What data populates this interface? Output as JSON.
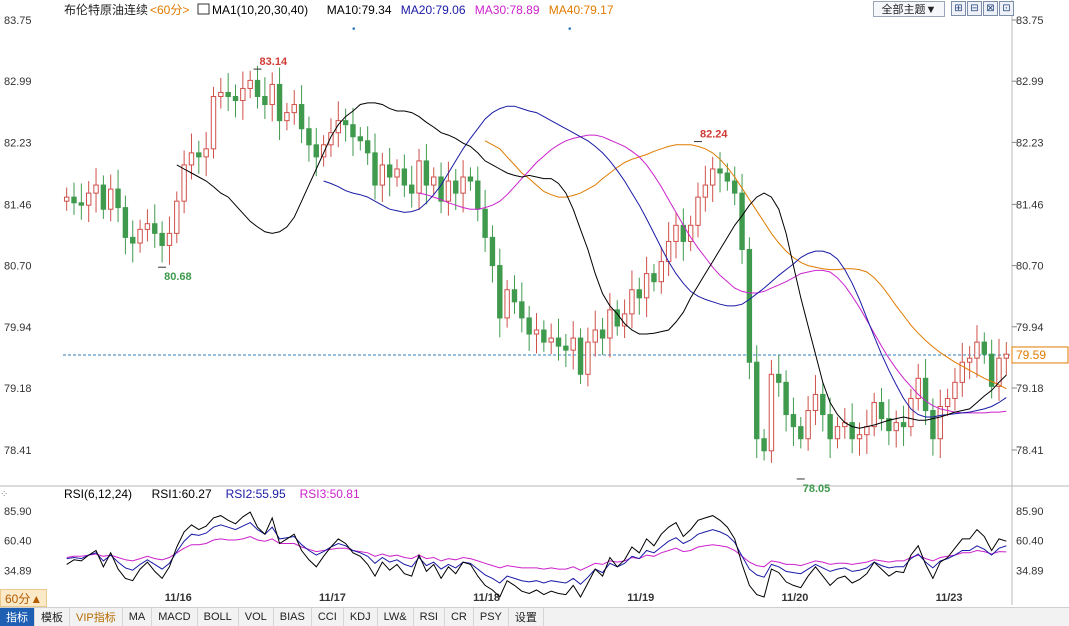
{
  "header": {
    "title": "布伦特原油连续",
    "period": "<60分>",
    "ma_labels": [
      {
        "text": "MA1(10,20,30,40)",
        "color": "#000000"
      },
      {
        "text": "MA10:79.34",
        "color": "#000000"
      },
      {
        "text": "MA20:79.06",
        "color": "#1a1aa6"
      },
      {
        "text": "MA30:78.89",
        "color": "#cc22cc"
      },
      {
        "text": "MA40:79.17",
        "color": "#e07b00"
      }
    ],
    "theme_button": "全部主题▼",
    "window_buttons": [
      "⊞",
      "⊟",
      "⊠",
      "⊡"
    ]
  },
  "rsi_header": {
    "labels": [
      {
        "text": "RSI(6,12,24)",
        "color": "#000000"
      },
      {
        "text": "RSI1:60.27",
        "color": "#000000"
      },
      {
        "text": "RSI2:55.95",
        "color": "#1a1aa6"
      },
      {
        "text": "RSI3:50.81",
        "color": "#cc22cc"
      }
    ]
  },
  "colors": {
    "up": "#d0504a",
    "down": "#3f9a4d",
    "ma10": "#000000",
    "ma20": "#1a1aa6",
    "ma30": "#cc22cc",
    "ma40": "#e07b00",
    "current_line": "#2d7fc0"
  },
  "chart_data": {
    "type": "candlestick",
    "yticks": [
      83.75,
      82.99,
      82.23,
      81.46,
      80.7,
      79.94,
      79.18,
      78.41
    ],
    "ylim": [
      78.0,
      83.75
    ],
    "xticks": [
      {
        "label": "11/16",
        "index": 15
      },
      {
        "label": "11/17",
        "index": 36
      },
      {
        "label": "11/18",
        "index": 57
      },
      {
        "label": "11/19",
        "index": 78
      },
      {
        "label": "11/20",
        "index": 99
      },
      {
        "label": "11/23",
        "index": 120
      }
    ],
    "annotations": [
      {
        "text": "83.14",
        "index": 26,
        "value": 83.14,
        "pos": "above"
      },
      {
        "text": "80.68",
        "index": 13,
        "value": 80.68,
        "pos": "below"
      },
      {
        "text": "82.24",
        "index": 86,
        "value": 82.24,
        "pos": "above"
      },
      {
        "text": "78.05",
        "index": 100,
        "value": 78.05,
        "pos": "below"
      }
    ],
    "current_price": 79.59,
    "current_label": "79.59",
    "closes": [
      81.55,
      81.48,
      81.45,
      81.6,
      81.7,
      81.4,
      81.65,
      81.42,
      81.05,
      80.98,
      81.15,
      81.22,
      81.1,
      80.95,
      81.1,
      81.5,
      81.95,
      82.1,
      82.05,
      82.15,
      82.8,
      82.85,
      82.8,
      82.75,
      82.9,
      83.0,
      82.8,
      82.7,
      82.95,
      82.5,
      82.6,
      82.7,
      82.4,
      82.2,
      82.05,
      82.2,
      82.35,
      82.5,
      82.45,
      82.3,
      82.25,
      82.1,
      81.7,
      81.95,
      81.8,
      81.9,
      81.7,
      81.6,
      82.0,
      81.7,
      81.8,
      81.5,
      81.75,
      81.6,
      81.8,
      81.75,
      81.4,
      81.05,
      80.7,
      80.05,
      80.4,
      80.25,
      80.05,
      79.85,
      79.9,
      79.75,
      79.8,
      79.7,
      79.65,
      79.8,
      79.35,
      79.75,
      79.9,
      79.8,
      80.15,
      79.95,
      80.1,
      80.4,
      80.3,
      80.6,
      80.5,
      80.75,
      81.0,
      81.2,
      81.0,
      81.2,
      81.55,
      81.7,
      81.9,
      81.85,
      81.75,
      81.6,
      80.9,
      79.5,
      78.55,
      78.4,
      79.35,
      79.25,
      78.85,
      78.7,
      78.55,
      78.9,
      79.1,
      78.85,
      78.55,
      78.7,
      78.75,
      78.55,
      78.6,
      78.7,
      79.0,
      78.8,
      78.65,
      78.75,
      78.7,
      79.05,
      79.3,
      78.9,
      78.55,
      78.95,
      79.05,
      79.25,
      79.5,
      79.55,
      79.75,
      79.6,
      79.2,
      79.55,
      79.6
    ],
    "ma10": [
      81.95,
      81.9,
      81.85,
      81.8,
      81.75,
      81.68,
      81.6,
      81.55,
      81.45,
      81.35,
      81.25,
      81.18,
      81.12,
      81.1,
      81.12,
      81.18,
      81.3,
      81.5,
      81.7,
      81.9,
      82.1,
      82.3,
      82.45,
      82.55,
      82.62,
      82.7,
      82.72,
      82.72,
      82.7,
      82.65,
      82.62,
      82.62,
      82.6,
      82.55,
      82.48,
      82.42,
      82.35,
      82.32,
      82.28,
      82.22,
      82.18,
      82.1,
      82.0,
      81.95,
      81.9,
      81.85,
      81.82,
      81.8,
      81.82,
      81.8,
      81.78,
      81.78,
      81.72,
      81.6,
      81.4,
      81.15,
      80.9,
      80.6,
      80.35,
      80.2,
      80.1,
      79.98,
      79.9,
      79.85,
      79.85,
      79.86,
      79.88,
      79.9,
      80.0,
      80.12,
      80.3,
      80.45,
      80.6,
      80.75,
      80.9,
      81.05,
      81.2,
      81.32,
      81.45,
      81.55,
      81.6,
      81.55,
      81.4,
      81.1,
      80.7,
      80.3,
      79.95,
      79.6,
      79.25,
      79.0,
      78.85,
      78.75,
      78.7,
      78.68,
      78.7,
      78.72,
      78.75,
      78.78,
      78.8,
      78.82,
      78.8,
      78.78,
      78.78,
      78.8,
      78.82,
      78.85,
      78.88,
      78.9,
      78.92,
      79.0,
      79.08,
      79.15,
      79.25,
      79.34
    ],
    "ma20": [
      81.75,
      81.72,
      81.68,
      81.63,
      81.6,
      81.58,
      81.55,
      81.5,
      81.45,
      81.4,
      81.38,
      81.36,
      81.37,
      81.4,
      81.48,
      81.58,
      81.7,
      81.85,
      82.0,
      82.15,
      82.28,
      82.4,
      82.52,
      82.6,
      82.65,
      82.68,
      82.68,
      82.65,
      82.62,
      82.6,
      82.55,
      82.5,
      82.45,
      82.4,
      82.35,
      82.3,
      82.25,
      82.18,
      82.1,
      82.0,
      81.88,
      81.75,
      81.6,
      81.45,
      81.28,
      81.1,
      80.92,
      80.75,
      80.6,
      80.48,
      80.38,
      80.32,
      80.28,
      80.25,
      80.22,
      80.2,
      80.2,
      80.22,
      80.28,
      80.35,
      80.42,
      80.5,
      80.58,
      80.65,
      80.72,
      80.8,
      80.85,
      80.88,
      80.88,
      80.85,
      80.78,
      80.65,
      80.48,
      80.28,
      80.05,
      79.82,
      79.6,
      79.4,
      79.22,
      79.05,
      78.92,
      78.85,
      78.82,
      78.82,
      78.84,
      78.85,
      78.86,
      78.87,
      78.88,
      78.9,
      78.92,
      78.95,
      79.0,
      79.06
    ],
    "ma30": [
      81.6,
      81.58,
      81.55,
      81.52,
      81.48,
      81.45,
      81.42,
      81.4,
      81.4,
      81.42,
      81.45,
      81.5,
      81.58,
      81.68,
      81.78,
      81.88,
      81.98,
      82.06,
      82.14,
      82.2,
      82.25,
      82.28,
      82.3,
      82.32,
      82.32,
      82.3,
      82.26,
      82.22,
      82.18,
      82.12,
      82.05,
      81.95,
      81.82,
      81.68,
      81.52,
      81.36,
      81.2,
      81.05,
      80.92,
      80.8,
      80.68,
      80.58,
      80.5,
      80.42,
      80.38,
      80.36,
      80.36,
      80.38,
      80.42,
      80.46,
      80.5,
      80.55,
      80.6,
      80.62,
      80.64,
      80.64,
      80.62,
      80.55,
      80.45,
      80.32,
      80.18,
      80.02,
      79.86,
      79.7,
      79.55,
      79.42,
      79.3,
      79.2,
      79.1,
      79.02,
      78.96,
      78.92,
      78.9,
      78.88,
      78.87,
      78.87,
      78.87,
      78.87,
      78.88,
      78.88,
      78.89
    ],
    "ma40": [
      82.25,
      82.2,
      82.15,
      82.05,
      81.95,
      81.85,
      81.78,
      81.7,
      81.62,
      81.58,
      81.55,
      81.55,
      81.57,
      81.6,
      81.65,
      81.7,
      81.78,
      81.85,
      81.92,
      81.98,
      82.02,
      82.05,
      82.08,
      82.12,
      82.15,
      82.18,
      82.2,
      82.2,
      82.2,
      82.18,
      82.15,
      82.1,
      82.02,
      81.92,
      81.8,
      81.66,
      81.52,
      81.38,
      81.24,
      81.1,
      80.98,
      80.88,
      80.8,
      80.74,
      80.7,
      80.68,
      80.66,
      80.65,
      80.65,
      80.66,
      80.66,
      80.65,
      80.62,
      80.55,
      80.45,
      80.33,
      80.2,
      80.08,
      79.96,
      79.86,
      79.77,
      79.69,
      79.62,
      79.56,
      79.5,
      79.45,
      79.4,
      79.35,
      79.3,
      79.26,
      79.22,
      79.17
    ],
    "rsi_yticks": [
      85.9,
      60.4,
      34.89
    ],
    "rsi_ylim": [
      18.0,
      92.0
    ],
    "rsi1": [
      40,
      44,
      43,
      48,
      52,
      38,
      50,
      36,
      28,
      26,
      36,
      42,
      34,
      28,
      38,
      55,
      68,
      74,
      70,
      73,
      80,
      82,
      78,
      75,
      81,
      85,
      72,
      66,
      80,
      58,
      62,
      66,
      52,
      44,
      38,
      47,
      55,
      62,
      58,
      50,
      47,
      40,
      30,
      42,
      35,
      40,
      32,
      30,
      48,
      34,
      40,
      28,
      38,
      32,
      42,
      40,
      30,
      22,
      18,
      12,
      26,
      22,
      17,
      15,
      18,
      14,
      17,
      15,
      14,
      22,
      12,
      24,
      36,
      30,
      46,
      38,
      44,
      55,
      50,
      62,
      56,
      66,
      72,
      76,
      64,
      70,
      78,
      80,
      82,
      78,
      72,
      62,
      40,
      22,
      14,
      12,
      36,
      33,
      25,
      22,
      20,
      30,
      38,
      30,
      22,
      28,
      30,
      24,
      27,
      32,
      42,
      36,
      30,
      34,
      33,
      48,
      56,
      40,
      28,
      42,
      46,
      54,
      62,
      62,
      70,
      64,
      52,
      62,
      60
    ],
    "rsi2": [
      45,
      46,
      45,
      48,
      50,
      43,
      48,
      42,
      37,
      35,
      40,
      44,
      40,
      36,
      41,
      51,
      60,
      66,
      65,
      67,
      72,
      74,
      72,
      70,
      73,
      76,
      70,
      66,
      72,
      62,
      63,
      64,
      57,
      52,
      48,
      51,
      55,
      58,
      56,
      52,
      50,
      47,
      41,
      46,
      42,
      44,
      40,
      38,
      46,
      39,
      42,
      36,
      40,
      37,
      42,
      41,
      36,
      31,
      28,
      24,
      30,
      28,
      26,
      25,
      26,
      24,
      26,
      25,
      24,
      28,
      23,
      29,
      36,
      33,
      41,
      38,
      41,
      47,
      45,
      52,
      50,
      55,
      60,
      63,
      58,
      61,
      66,
      68,
      70,
      68,
      65,
      59,
      47,
      36,
      31,
      29,
      40,
      38,
      34,
      33,
      32,
      36,
      40,
      37,
      34,
      36,
      37,
      34,
      35,
      37,
      42,
      39,
      37,
      38,
      38,
      45,
      49,
      42,
      37,
      43,
      45,
      48,
      52,
      52,
      56,
      53,
      48,
      54,
      55.95
    ],
    "rsi3": [
      46,
      47,
      47,
      48,
      49,
      47,
      48,
      46,
      44,
      43,
      45,
      47,
      45,
      44,
      46,
      50,
      54,
      57,
      57,
      58,
      61,
      62,
      61,
      61,
      62,
      64,
      61,
      60,
      62,
      58,
      58,
      58,
      55,
      53,
      51,
      52,
      53,
      54,
      54,
      52,
      51,
      50,
      47,
      49,
      47,
      48,
      46,
      45,
      48,
      45,
      46,
      43,
      45,
      44,
      46,
      45,
      43,
      41,
      39,
      37,
      39,
      38,
      37,
      37,
      37,
      36,
      37,
      36,
      36,
      38,
      35,
      38,
      41,
      40,
      43,
      42,
      43,
      46,
      45,
      48,
      47,
      50,
      52,
      54,
      51,
      52,
      55,
      56,
      57,
      56,
      55,
      52,
      47,
      42,
      39,
      38,
      43,
      42,
      40,
      40,
      39,
      41,
      43,
      42,
      40,
      41,
      41,
      40,
      41,
      42,
      44,
      43,
      42,
      43,
      43,
      46,
      48,
      45,
      43,
      46,
      47,
      48,
      50,
      50,
      52,
      51,
      49,
      51,
      50.81
    ]
  },
  "toolbar": {
    "period_label": "60分▲",
    "items": [
      "指标",
      "模板",
      "VIP指标",
      "MA",
      "MACD",
      "BOLL",
      "VOL",
      "BIAS",
      "CCI",
      "KDJ",
      "LW&",
      "RSI",
      "CR",
      "PSY",
      "设置"
    ]
  }
}
